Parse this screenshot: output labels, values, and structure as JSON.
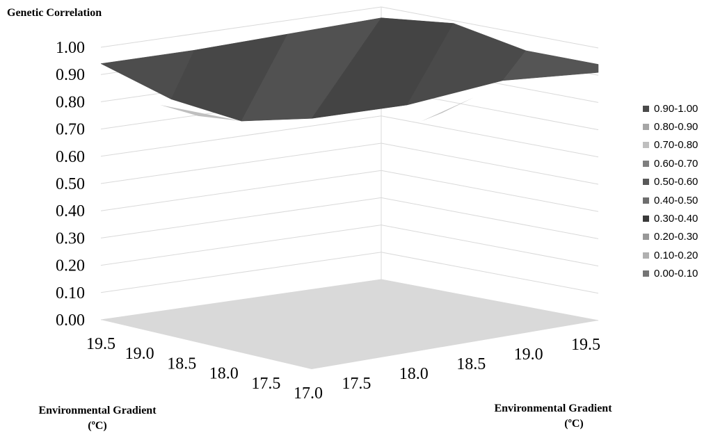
{
  "chart_data": {
    "type": "surface",
    "title": "Genetic Correlation",
    "xlabel_left": "Environmental Gradient",
    "xlabel_left_unit": "(ºC)",
    "xlabel_right": "Environmental Gradient",
    "xlabel_right_unit": "(ºC)",
    "zlim": [
      0,
      1
    ],
    "z_ticks": [
      "0.00",
      "0.10",
      "0.20",
      "0.30",
      "0.40",
      "0.50",
      "0.60",
      "0.70",
      "0.80",
      "0.90",
      "1.00"
    ],
    "left_axis_ticks": [
      "19.5",
      "19.0",
      "18.5",
      "18.0",
      "17.5",
      "17.0"
    ],
    "right_axis_ticks": [
      "17.5",
      "18.0",
      "18.5",
      "19.0",
      "19.5"
    ],
    "grid": true,
    "legend": {
      "position": "right",
      "items": [
        {
          "label": "0.90-1.00",
          "color": "#4a4a4a"
        },
        {
          "label": "0.80-0.90",
          "color": "#a6a6a6"
        },
        {
          "label": "0.70-0.80",
          "color": "#bfbfbf"
        },
        {
          "label": "0.60-0.70",
          "color": "#7f7f7f"
        },
        {
          "label": "0.50-0.60",
          "color": "#595959"
        },
        {
          "label": "0.40-0.50",
          "color": "#6e6e6e"
        },
        {
          "label": "0.30-0.40",
          "color": "#3a3a3a"
        },
        {
          "label": "0.20-0.30",
          "color": "#989898"
        },
        {
          "label": "0.10-0.20",
          "color": "#b0b0b0"
        },
        {
          "label": "0.00-0.10",
          "color": "#757575"
        }
      ]
    },
    "floor_color": "#d9d9d9",
    "surface": {
      "left_axis_values": [
        "19.5",
        "19.0",
        "18.5",
        "18.0",
        "17.5",
        "17.0"
      ],
      "front_edge_z": [
        0.94,
        0.87,
        0.85,
        0.92,
        0.91,
        0.94,
        0.91
      ],
      "back_edge_z": [
        0.94,
        0.94,
        0.95,
        0.96,
        0.99,
        0.94,
        0.94
      ],
      "dip_z": 0.85
    }
  }
}
